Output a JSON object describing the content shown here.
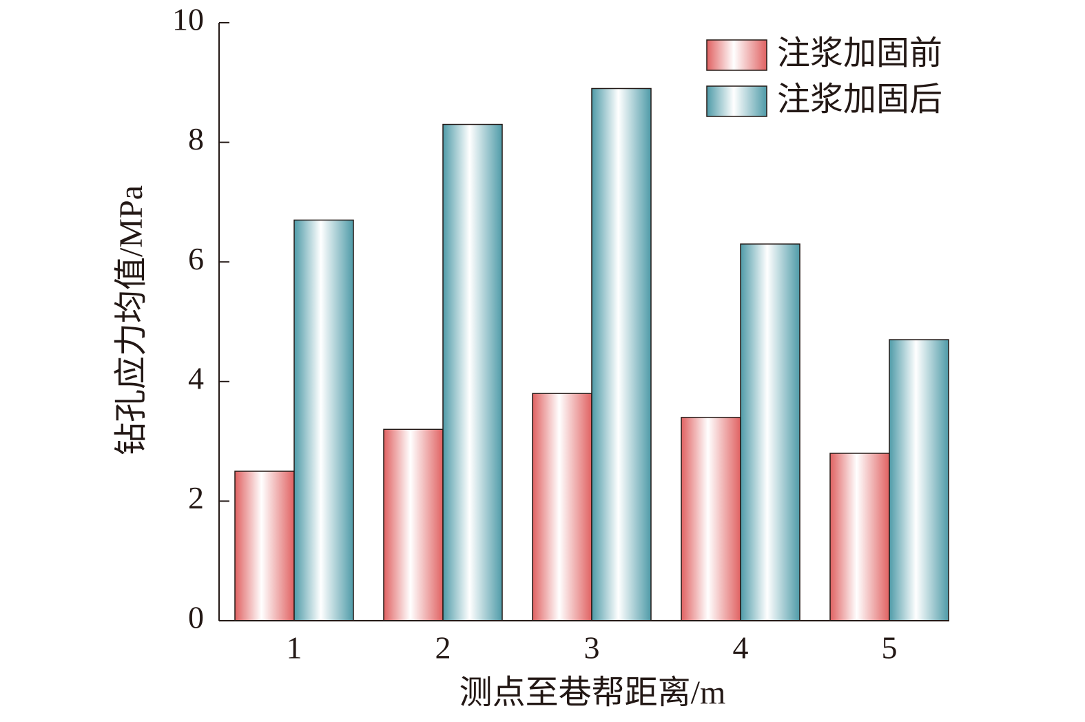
{
  "chart_data": {
    "type": "bar",
    "x_label": "测点至巷帮距离/m",
    "y_label": "钻孔应力均值/MPa",
    "categories": [
      "1",
      "2",
      "3",
      "4",
      "5"
    ],
    "series": [
      {
        "name": "注浆加固前",
        "color": "#e06262",
        "values": [
          2.5,
          3.2,
          3.8,
          3.4,
          2.8
        ]
      },
      {
        "name": "注浆加固后",
        "color": "#4f9ba8",
        "values": [
          6.7,
          8.3,
          8.9,
          6.3,
          4.7
        ]
      }
    ],
    "ylim": [
      0,
      10
    ],
    "yticks": [
      0,
      2,
      4,
      6,
      8,
      10
    ],
    "legend": "upper right"
  }
}
